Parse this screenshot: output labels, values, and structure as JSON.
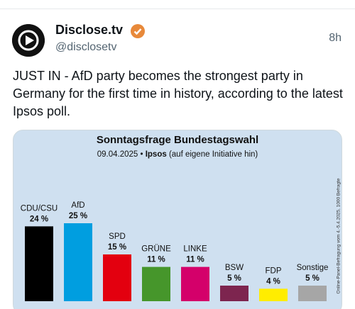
{
  "tweet": {
    "name": "Disclose.tv",
    "handle": "@disclosetv",
    "time": "8h",
    "text": "JUST IN - AfD party becomes the strongest party in Germany for the first time in history, according to the latest Ipsos poll."
  },
  "chart_data": {
    "type": "bar",
    "title": "Sonntagsfrage Bundestagswahl",
    "subtitle_date": "09.04.2025 •",
    "subtitle_pollster": "Ipsos",
    "subtitle_note": "(auf eigene Initiative hin)",
    "side_note": "Online-Panel-Befragung vom 4.-5.4.2025, 1000 Befragte",
    "categories": [
      "CDU/CSU",
      "AfD",
      "SPD",
      "GRÜNE",
      "LINKE",
      "BSW",
      "FDP",
      "Sonstige"
    ],
    "values": [
      24,
      25,
      15,
      11,
      11,
      5,
      4,
      5
    ],
    "value_labels": [
      "24 %",
      "25 %",
      "15 %",
      "11 %",
      "11 %",
      "5 %",
      "4 %",
      "5 %"
    ],
    "colors": [
      "#000000",
      "#009ee0",
      "#e3000f",
      "#46962b",
      "#d4006a",
      "#7d254f",
      "#ffed00",
      "#a6a6a6"
    ]
  }
}
